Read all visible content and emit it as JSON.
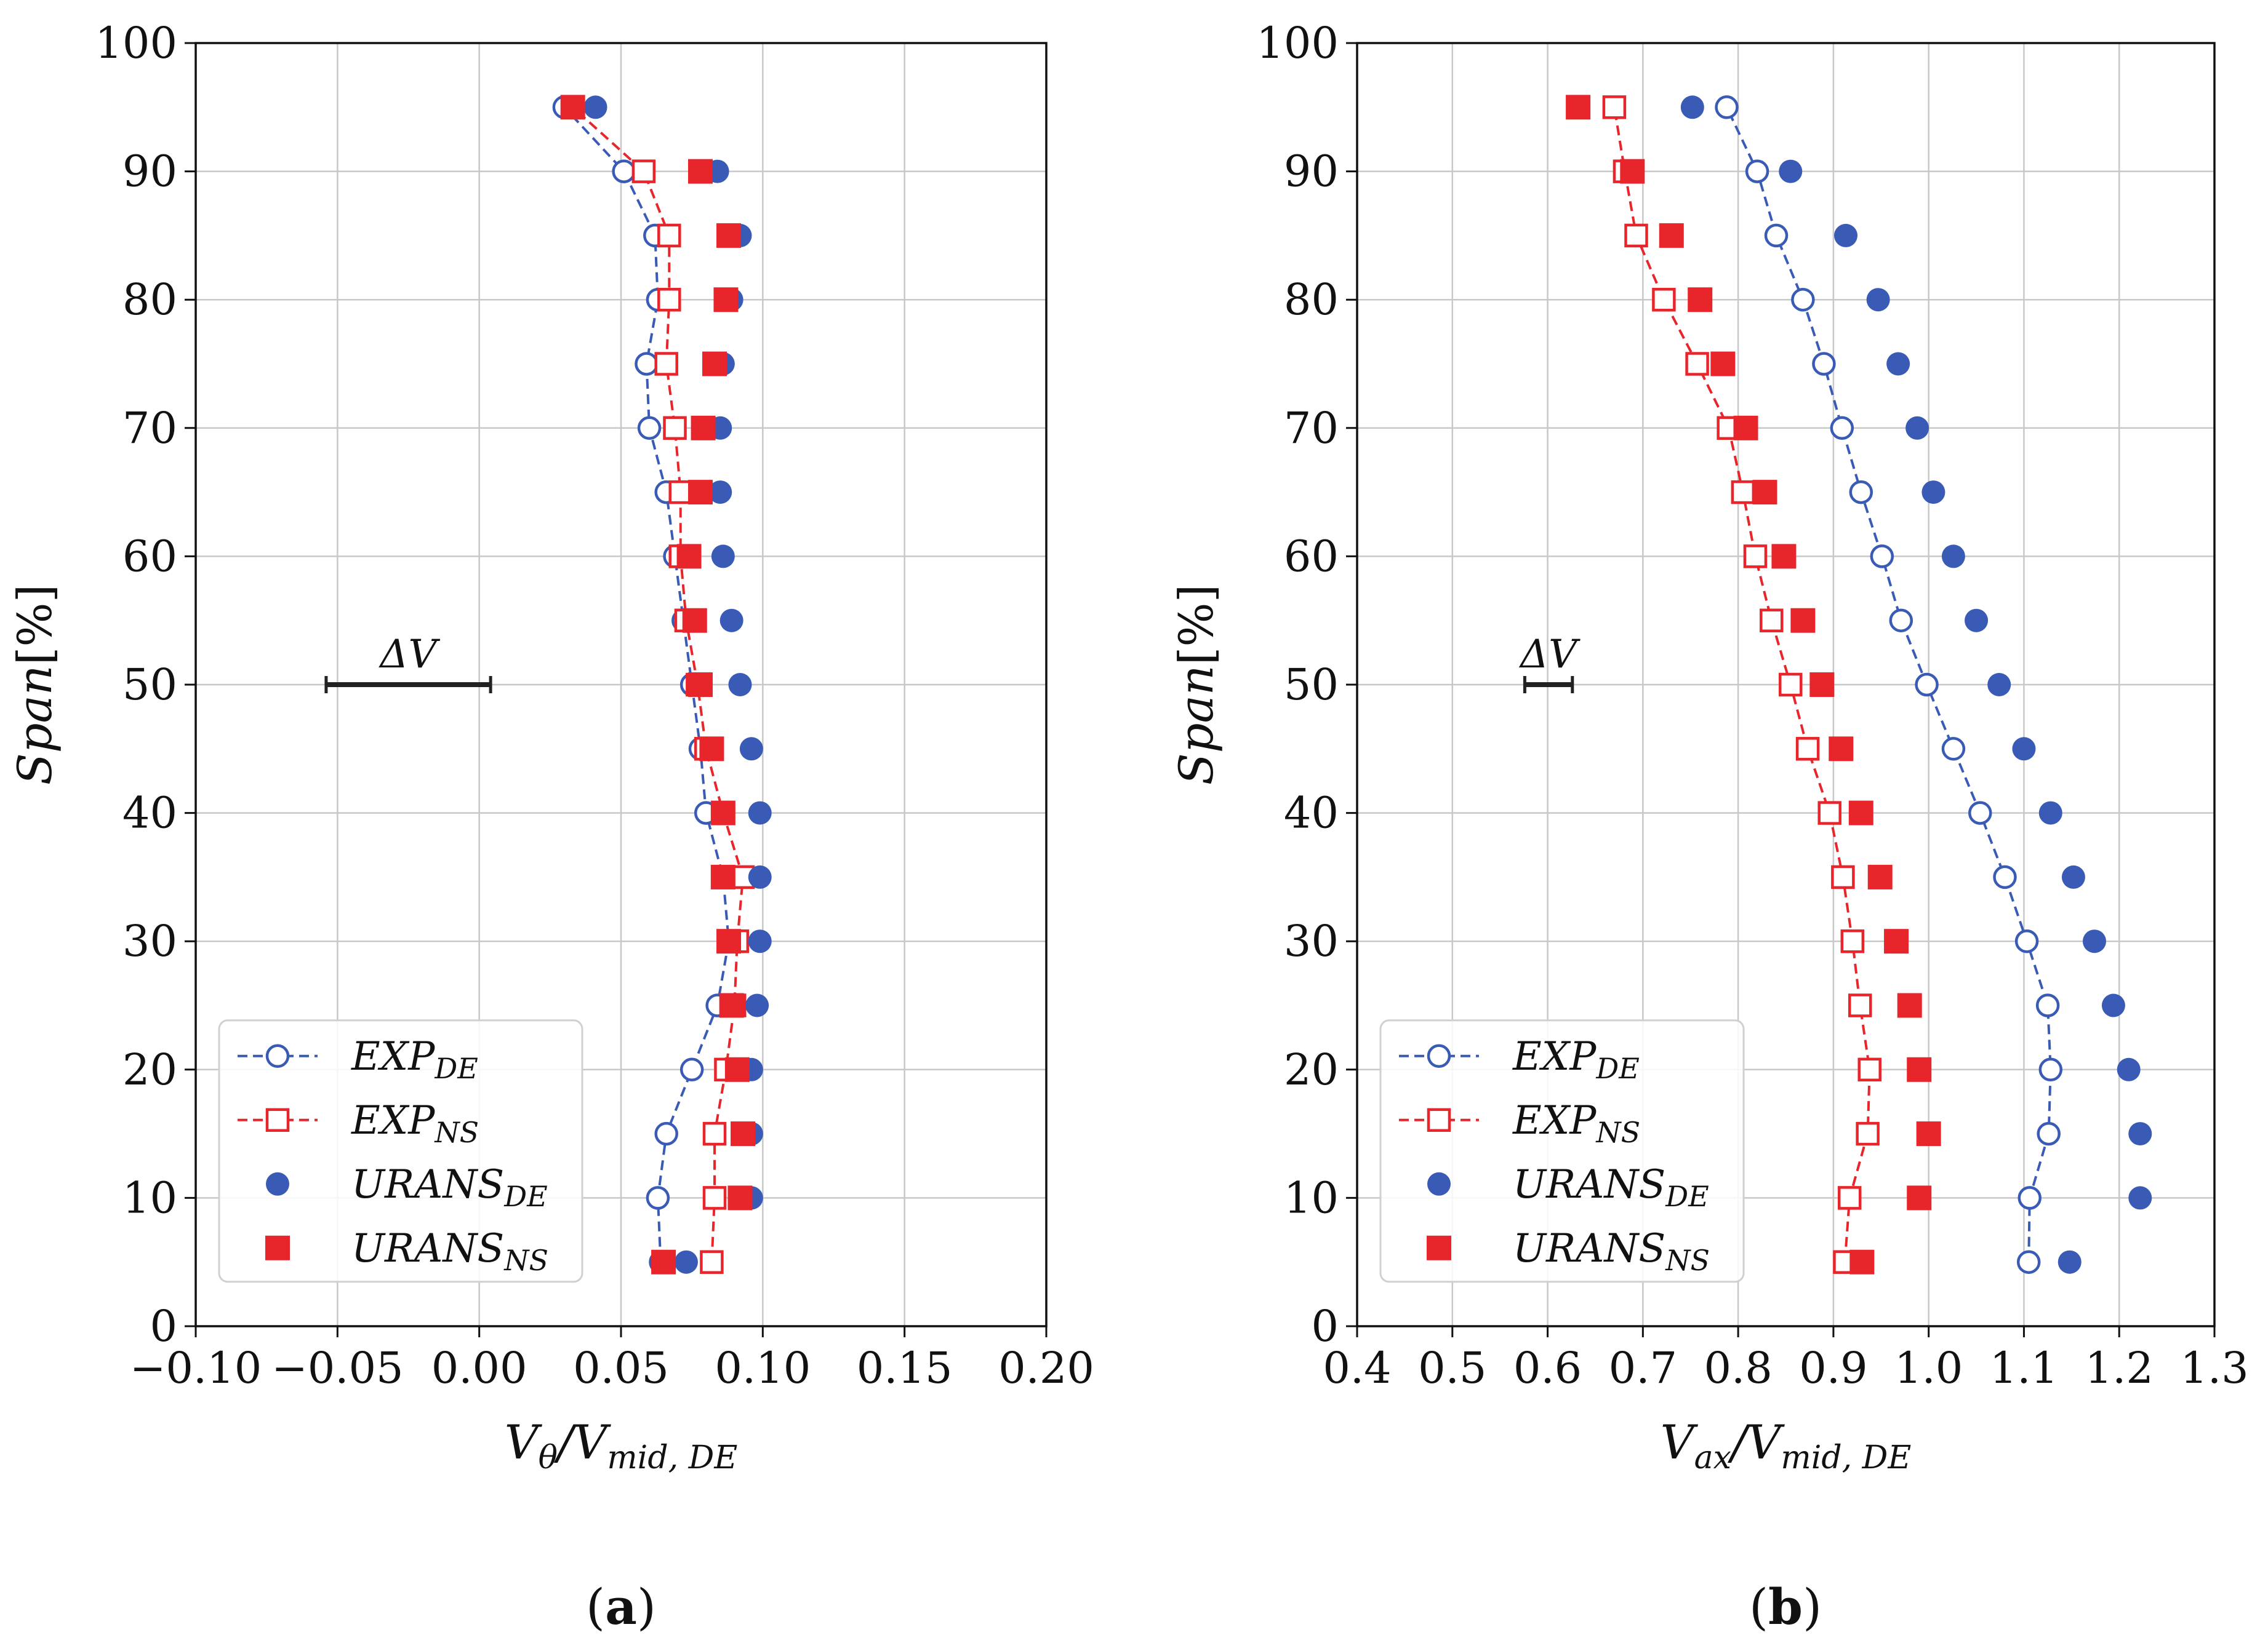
{
  "chart_data": [
    {
      "type": "line",
      "panel_label": "(a)",
      "title": "",
      "xlabel": "Vθ/Vmid, DE",
      "ylabel": "Span[%]",
      "xlim": [
        -0.1,
        0.2
      ],
      "ylim": [
        0,
        100
      ],
      "xticks": [
        -0.1,
        -0.05,
        0.0,
        0.05,
        0.1,
        0.15,
        0.2
      ],
      "xtick_labels": [
        "−0.10",
        "−0.05",
        "0.00",
        "0.05",
        "0.10",
        "0.15",
        "0.20"
      ],
      "yticks": [
        0,
        10,
        20,
        30,
        40,
        50,
        60,
        70,
        80,
        90,
        100
      ],
      "ytick_labels": [
        "0",
        "10",
        "20",
        "30",
        "40",
        "50",
        "60",
        "70",
        "80",
        "90",
        "100"
      ],
      "grid": true,
      "legend_position": "lower-left",
      "annotation": {
        "text": "ΔV",
        "y": 50,
        "x_start": -0.054,
        "x_end": 0.004
      },
      "series": [
        {
          "name": "EXP_DE",
          "legend_base": "EXP",
          "legend_sub": "DE",
          "marker": "open-circle",
          "line": "dashed",
          "color": "#3a5bb5",
          "y": [
            5,
            10,
            15,
            20,
            25,
            30,
            35,
            40,
            45,
            50,
            55,
            60,
            65,
            70,
            75,
            80,
            85,
            90,
            95
          ],
          "x": [
            0.064,
            0.063,
            0.066,
            0.075,
            0.084,
            0.088,
            0.086,
            0.08,
            0.078,
            0.075,
            0.072,
            0.069,
            0.066,
            0.06,
            0.059,
            0.063,
            0.062,
            0.051,
            0.03
          ]
        },
        {
          "name": "EXP_NS",
          "legend_base": "EXP",
          "legend_sub": "NS",
          "marker": "open-square",
          "line": "dashed",
          "color": "#e8252b",
          "y": [
            5,
            10,
            15,
            20,
            25,
            30,
            35,
            40,
            45,
            50,
            55,
            60,
            65,
            70,
            75,
            80,
            85,
            90,
            95
          ],
          "x": [
            0.082,
            0.083,
            0.083,
            0.087,
            0.09,
            0.091,
            0.093,
            0.086,
            0.08,
            0.077,
            0.073,
            0.071,
            0.071,
            0.069,
            0.066,
            0.067,
            0.067,
            0.058,
            0.033
          ]
        },
        {
          "name": "URANS_DE",
          "legend_base": "URANS",
          "legend_sub": "DE",
          "marker": "filled-circle",
          "line": "none",
          "color": "#3a5bb5",
          "y": [
            5,
            10,
            15,
            20,
            25,
            30,
            35,
            40,
            45,
            50,
            55,
            60,
            65,
            70,
            75,
            80,
            85,
            90,
            95
          ],
          "x": [
            0.073,
            0.096,
            0.096,
            0.096,
            0.098,
            0.099,
            0.099,
            0.099,
            0.096,
            0.092,
            0.089,
            0.086,
            0.085,
            0.085,
            0.086,
            0.089,
            0.092,
            0.084,
            0.041
          ]
        },
        {
          "name": "URANS_NS",
          "legend_base": "URANS",
          "legend_sub": "NS",
          "marker": "filled-square",
          "line": "none",
          "color": "#e8252b",
          "y": [
            5,
            10,
            15,
            20,
            25,
            30,
            35,
            40,
            45,
            50,
            55,
            60,
            65,
            70,
            75,
            80,
            85,
            90,
            95
          ],
          "x": [
            0.065,
            0.092,
            0.093,
            0.091,
            0.089,
            0.088,
            0.086,
            0.086,
            0.082,
            0.078,
            0.076,
            0.074,
            0.078,
            0.079,
            0.083,
            0.087,
            0.088,
            0.078,
            0.033
          ]
        }
      ]
    },
    {
      "type": "line",
      "panel_label": "(b)",
      "title": "",
      "xlabel": "Vax/Vmid, DE",
      "ylabel": "Span[%]",
      "xlim": [
        0.4,
        1.3
      ],
      "ylim": [
        0,
        100
      ],
      "xticks": [
        0.4,
        0.5,
        0.6,
        0.7,
        0.8,
        0.9,
        1.0,
        1.1,
        1.2,
        1.3
      ],
      "xtick_labels": [
        "0.4",
        "0.5",
        "0.6",
        "0.7",
        "0.8",
        "0.9",
        "1.0",
        "1.1",
        "1.2",
        "1.3"
      ],
      "yticks": [
        0,
        10,
        20,
        30,
        40,
        50,
        60,
        70,
        80,
        90,
        100
      ],
      "ytick_labels": [
        "0",
        "10",
        "20",
        "30",
        "40",
        "50",
        "60",
        "70",
        "80",
        "90",
        "100"
      ],
      "grid": true,
      "legend_position": "lower-left",
      "annotation": {
        "text": "ΔV",
        "y": 50,
        "x_start": 0.576,
        "x_end": 0.626
      },
      "series": [
        {
          "name": "EXP_DE",
          "legend_base": "EXP",
          "legend_sub": "DE",
          "marker": "open-circle",
          "line": "dashed",
          "color": "#3a5bb5",
          "y": [
            5,
            10,
            15,
            20,
            25,
            30,
            35,
            40,
            45,
            50,
            55,
            60,
            65,
            70,
            75,
            80,
            85,
            90,
            95
          ],
          "x": [
            1.105,
            1.106,
            1.126,
            1.128,
            1.125,
            1.103,
            1.08,
            1.054,
            1.026,
            0.998,
            0.971,
            0.951,
            0.929,
            0.909,
            0.89,
            0.868,
            0.84,
            0.82,
            0.788
          ]
        },
        {
          "name": "EXP_NS",
          "legend_base": "EXP",
          "legend_sub": "NS",
          "marker": "open-square",
          "line": "dashed",
          "color": "#e8252b",
          "y": [
            5,
            10,
            15,
            20,
            25,
            30,
            35,
            40,
            45,
            50,
            55,
            60,
            65,
            70,
            75,
            80,
            85,
            90,
            95
          ],
          "x": [
            0.912,
            0.917,
            0.936,
            0.938,
            0.928,
            0.92,
            0.91,
            0.896,
            0.873,
            0.855,
            0.835,
            0.818,
            0.805,
            0.79,
            0.757,
            0.722,
            0.693,
            0.681,
            0.67
          ]
        },
        {
          "name": "URANS_DE",
          "legend_base": "URANS",
          "legend_sub": "DE",
          "marker": "filled-circle",
          "line": "none",
          "color": "#3a5bb5",
          "y": [
            5,
            10,
            15,
            20,
            25,
            30,
            35,
            40,
            45,
            50,
            55,
            60,
            65,
            70,
            75,
            80,
            85,
            90,
            95
          ],
          "x": [
            1.148,
            1.222,
            1.222,
            1.21,
            1.194,
            1.174,
            1.152,
            1.128,
            1.1,
            1.074,
            1.05,
            1.026,
            1.005,
            0.988,
            0.968,
            0.947,
            0.913,
            0.855,
            0.752
          ]
        },
        {
          "name": "URANS_NS",
          "legend_base": "URANS",
          "legend_sub": "NS",
          "marker": "filled-square",
          "line": "none",
          "color": "#e8252b",
          "y": [
            5,
            10,
            15,
            20,
            25,
            30,
            35,
            40,
            45,
            50,
            55,
            60,
            65,
            70,
            75,
            80,
            85,
            90,
            95
          ],
          "x": [
            0.93,
            0.99,
            1.0,
            0.99,
            0.98,
            0.966,
            0.949,
            0.929,
            0.908,
            0.888,
            0.868,
            0.848,
            0.828,
            0.808,
            0.784,
            0.76,
            0.73,
            0.689,
            0.632
          ]
        }
      ]
    }
  ]
}
